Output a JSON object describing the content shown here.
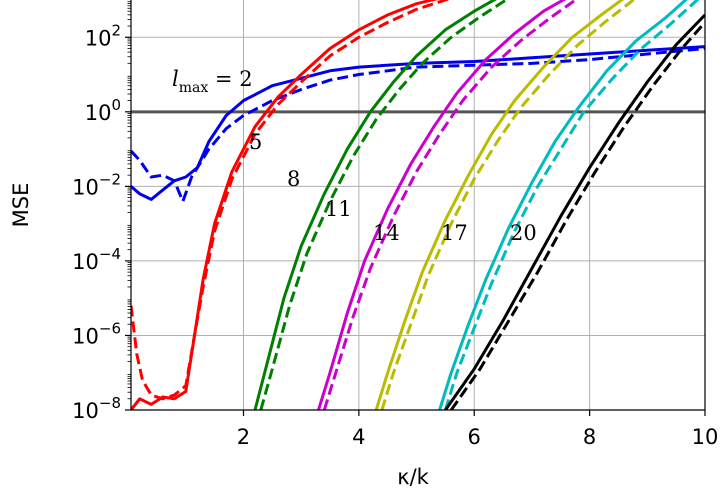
{
  "chart_data": {
    "type": "line",
    "xlabel": "κ/k",
    "ylabel": "MSE",
    "xlim": [
      0.05,
      10
    ],
    "ylim": [
      1e-08,
      1000
    ],
    "yscale": "log",
    "grid": true,
    "xticks": [
      "2",
      "4",
      "6",
      "8",
      "10"
    ],
    "yticks": [
      {
        "base": "10",
        "exp": "2"
      },
      {
        "base": "10",
        "exp": "0"
      },
      {
        "base": "10",
        "exp": "−2"
      },
      {
        "base": "10",
        "exp": "−4"
      },
      {
        "base": "10",
        "exp": "−6"
      },
      {
        "base": "10",
        "exp": "−8"
      }
    ],
    "reference_line": {
      "y": 1.0,
      "color": "#555555"
    },
    "lmax_label": {
      "italic": "l",
      "sub": "max",
      "rest": " = 2"
    },
    "curve_labels": [
      "5",
      "8",
      "11",
      "14",
      "17",
      "20"
    ],
    "series": [
      {
        "lmax": 2,
        "color": "#0000ee",
        "solid": [
          [
            0.05,
            -2.0
          ],
          [
            0.2,
            -2.2
          ],
          [
            0.4,
            -2.35
          ],
          [
            0.6,
            -2.1
          ],
          [
            0.8,
            -1.85
          ],
          [
            1.0,
            -1.75
          ],
          [
            1.2,
            -1.5
          ],
          [
            1.4,
            -0.8
          ],
          [
            1.7,
            -0.1
          ],
          [
            2.0,
            0.3
          ],
          [
            2.5,
            0.7
          ],
          [
            3.0,
            0.9
          ],
          [
            3.5,
            1.1
          ],
          [
            4.0,
            1.2
          ],
          [
            5.0,
            1.3
          ],
          [
            6.0,
            1.35
          ],
          [
            7.0,
            1.45
          ],
          [
            8.0,
            1.55
          ],
          [
            9.0,
            1.65
          ],
          [
            10.0,
            1.75
          ]
        ],
        "dashed": [
          [
            0.05,
            -1.05
          ],
          [
            0.2,
            -1.3
          ],
          [
            0.4,
            -1.75
          ],
          [
            0.6,
            -1.7
          ],
          [
            0.8,
            -1.85
          ],
          [
            0.95,
            -2.4
          ],
          [
            1.1,
            -1.75
          ],
          [
            1.4,
            -1.0
          ],
          [
            1.7,
            -0.45
          ],
          [
            2.0,
            -0.1
          ],
          [
            2.5,
            0.3
          ],
          [
            3.0,
            0.6
          ],
          [
            3.5,
            0.85
          ],
          [
            4.0,
            1.0
          ],
          [
            5.0,
            1.2
          ],
          [
            6.0,
            1.25
          ],
          [
            7.0,
            1.3
          ],
          [
            8.0,
            1.4
          ],
          [
            9.0,
            1.55
          ],
          [
            10.0,
            1.7
          ]
        ]
      },
      {
        "lmax": 5,
        "color": "#ff0000",
        "solid": [
          [
            0.05,
            -8.0
          ],
          [
            0.2,
            -7.7
          ],
          [
            0.4,
            -7.85
          ],
          [
            0.6,
            -7.65
          ],
          [
            0.8,
            -7.7
          ],
          [
            1.0,
            -7.5
          ],
          [
            1.15,
            -6.0
          ],
          [
            1.3,
            -4.5
          ],
          [
            1.5,
            -3.0
          ],
          [
            1.8,
            -1.6
          ],
          [
            2.2,
            -0.4
          ],
          [
            2.6,
            0.4
          ],
          [
            3.0,
            1.0
          ],
          [
            3.5,
            1.7
          ],
          [
            4.0,
            2.2
          ],
          [
            4.5,
            2.6
          ],
          [
            5.0,
            2.9
          ],
          [
            5.4,
            3.05
          ]
        ],
        "dashed": [
          [
            0.05,
            -5.2
          ],
          [
            0.15,
            -6.5
          ],
          [
            0.25,
            -7.2
          ],
          [
            0.4,
            -7.6
          ],
          [
            0.6,
            -7.7
          ],
          [
            0.8,
            -7.6
          ],
          [
            1.0,
            -7.35
          ],
          [
            1.15,
            -6.0
          ],
          [
            1.3,
            -4.7
          ],
          [
            1.5,
            -3.2
          ],
          [
            1.8,
            -1.8
          ],
          [
            2.2,
            -0.6
          ],
          [
            2.6,
            0.2
          ],
          [
            3.0,
            0.8
          ],
          [
            3.5,
            1.5
          ],
          [
            4.0,
            2.0
          ],
          [
            4.5,
            2.4
          ],
          [
            5.0,
            2.75
          ],
          [
            5.6,
            3.05
          ]
        ]
      },
      {
        "lmax": 8,
        "color": "#008000",
        "solid": [
          [
            2.2,
            -8.0
          ],
          [
            2.4,
            -6.8
          ],
          [
            2.7,
            -5.0
          ],
          [
            3.0,
            -3.6
          ],
          [
            3.4,
            -2.2
          ],
          [
            3.8,
            -1.0
          ],
          [
            4.2,
            0.0
          ],
          [
            4.6,
            0.8
          ],
          [
            5.0,
            1.5
          ],
          [
            5.5,
            2.2
          ],
          [
            6.0,
            2.7
          ],
          [
            6.4,
            3.05
          ]
        ],
        "dashed": [
          [
            2.3,
            -8.0
          ],
          [
            2.5,
            -6.9
          ],
          [
            2.8,
            -5.2
          ],
          [
            3.1,
            -3.8
          ],
          [
            3.5,
            -2.4
          ],
          [
            3.9,
            -1.2
          ],
          [
            4.3,
            -0.2
          ],
          [
            4.7,
            0.6
          ],
          [
            5.1,
            1.3
          ],
          [
            5.6,
            2.0
          ],
          [
            6.1,
            2.55
          ],
          [
            6.6,
            3.05
          ]
        ]
      },
      {
        "lmax": 11,
        "color": "#cc00cc",
        "solid": [
          [
            3.3,
            -8.0
          ],
          [
            3.5,
            -7.0
          ],
          [
            3.8,
            -5.4
          ],
          [
            4.1,
            -4.0
          ],
          [
            4.5,
            -2.6
          ],
          [
            4.9,
            -1.4
          ],
          [
            5.3,
            -0.4
          ],
          [
            5.7,
            0.5
          ],
          [
            6.2,
            1.4
          ],
          [
            6.7,
            2.1
          ],
          [
            7.2,
            2.7
          ],
          [
            7.6,
            3.05
          ]
        ],
        "dashed": [
          [
            3.4,
            -8.0
          ],
          [
            3.6,
            -7.0
          ],
          [
            3.9,
            -5.5
          ],
          [
            4.2,
            -4.2
          ],
          [
            4.6,
            -2.8
          ],
          [
            5.0,
            -1.6
          ],
          [
            5.4,
            -0.6
          ],
          [
            5.8,
            0.3
          ],
          [
            6.3,
            1.2
          ],
          [
            6.8,
            1.9
          ],
          [
            7.3,
            2.5
          ],
          [
            7.8,
            3.05
          ]
        ]
      },
      {
        "lmax": 14,
        "color": "#bbbb00",
        "solid": [
          [
            4.3,
            -8.0
          ],
          [
            4.5,
            -7.0
          ],
          [
            4.8,
            -5.6
          ],
          [
            5.1,
            -4.3
          ],
          [
            5.5,
            -2.9
          ],
          [
            5.9,
            -1.7
          ],
          [
            6.3,
            -0.6
          ],
          [
            6.7,
            0.3
          ],
          [
            7.2,
            1.2
          ],
          [
            7.7,
            2.0
          ],
          [
            8.2,
            2.6
          ],
          [
            8.6,
            3.05
          ]
        ],
        "dashed": [
          [
            4.4,
            -8.0
          ],
          [
            4.6,
            -7.0
          ],
          [
            4.9,
            -5.7
          ],
          [
            5.2,
            -4.4
          ],
          [
            5.6,
            -3.0
          ],
          [
            6.0,
            -1.8
          ],
          [
            6.4,
            -0.8
          ],
          [
            6.8,
            0.1
          ],
          [
            7.3,
            1.0
          ],
          [
            7.8,
            1.8
          ],
          [
            8.3,
            2.45
          ],
          [
            8.8,
            3.05
          ]
        ]
      },
      {
        "lmax": 17,
        "color": "#00bbbb",
        "solid": [
          [
            5.4,
            -8.0
          ],
          [
            5.6,
            -7.0
          ],
          [
            5.9,
            -5.7
          ],
          [
            6.2,
            -4.5
          ],
          [
            6.6,
            -3.1
          ],
          [
            7.0,
            -1.9
          ],
          [
            7.4,
            -0.8
          ],
          [
            7.8,
            0.1
          ],
          [
            8.3,
            1.1
          ],
          [
            8.8,
            1.9
          ],
          [
            9.3,
            2.5
          ],
          [
            9.7,
            3.05
          ]
        ],
        "dashed": [
          [
            5.5,
            -8.0
          ],
          [
            5.7,
            -7.0
          ],
          [
            6.0,
            -5.8
          ],
          [
            6.3,
            -4.6
          ],
          [
            6.7,
            -3.2
          ],
          [
            7.1,
            -2.0
          ],
          [
            7.5,
            -1.0
          ],
          [
            7.9,
            0.0
          ],
          [
            8.4,
            0.9
          ],
          [
            8.9,
            1.7
          ],
          [
            9.4,
            2.35
          ],
          [
            9.9,
            3.05
          ]
        ]
      },
      {
        "lmax": 20,
        "color": "#000000",
        "solid": [
          [
            5.5,
            -8.0
          ],
          [
            6.0,
            -6.9
          ],
          [
            6.5,
            -5.6
          ],
          [
            7.0,
            -4.2
          ],
          [
            7.5,
            -2.8
          ],
          [
            8.0,
            -1.5
          ],
          [
            8.5,
            -0.3
          ],
          [
            9.0,
            0.8
          ],
          [
            9.5,
            1.8
          ],
          [
            10.0,
            2.6
          ]
        ],
        "dashed": [
          [
            5.6,
            -8.0
          ],
          [
            6.1,
            -6.9
          ],
          [
            6.6,
            -5.6
          ],
          [
            7.1,
            -4.3
          ],
          [
            7.6,
            -2.9
          ],
          [
            8.1,
            -1.6
          ],
          [
            8.6,
            -0.4
          ],
          [
            9.1,
            0.7
          ],
          [
            9.6,
            1.7
          ],
          [
            10.0,
            2.4
          ]
        ]
      }
    ]
  }
}
